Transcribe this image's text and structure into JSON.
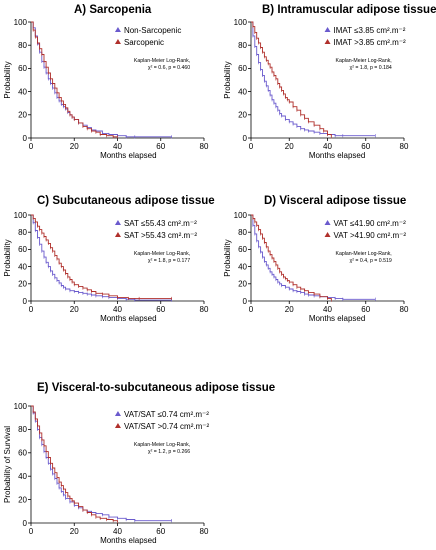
{
  "colors": {
    "series1": "#6a5acd",
    "series2": "#b0302c",
    "axis": "#000000"
  },
  "chart_data": [
    {
      "type": "line",
      "title": "A) Sarcopenia",
      "xlabel": "Months elapsed",
      "ylabel": "Probability",
      "xlim": [
        0,
        80
      ],
      "ylim": [
        0,
        100
      ],
      "xticks": [
        "0",
        "20",
        "40",
        "60",
        "80"
      ],
      "yticks": [
        "0",
        "20",
        "40",
        "60",
        "80",
        "100"
      ],
      "legend_position": "top-right",
      "annotation": [
        "Kaplan-Meier Log-Rank,",
        "χ² = 0.6, p = 0.460"
      ],
      "series": [
        {
          "name": "Non-Sarcopenic",
          "x": [
            0,
            1,
            2,
            3,
            4,
            5,
            6,
            7,
            8,
            9,
            10,
            11,
            12,
            13,
            14,
            15,
            16,
            17,
            18,
            19,
            20,
            22,
            24,
            26,
            28,
            30,
            33,
            36,
            40,
            44,
            48,
            65
          ],
          "y": [
            100,
            95,
            88,
            81,
            74,
            66,
            61,
            56,
            51,
            47,
            43,
            39,
            35,
            32,
            29,
            27,
            25,
            22,
            20,
            18,
            16,
            13,
            11,
            9,
            7,
            6,
            4,
            3,
            2,
            1,
            1,
            1
          ]
        },
        {
          "name": "Sarcopenic",
          "x": [
            0,
            1,
            2,
            3,
            4,
            5,
            6,
            7,
            8,
            9,
            10,
            11,
            12,
            13,
            14,
            15,
            16,
            17,
            18,
            19,
            20,
            22,
            24,
            26,
            28,
            30,
            32,
            35,
            38,
            40
          ],
          "y": [
            100,
            93,
            87,
            82,
            77,
            72,
            66,
            61,
            56,
            51,
            47,
            43,
            39,
            35,
            32,
            29,
            26,
            23,
            20,
            18,
            16,
            13,
            10,
            8,
            6,
            5,
            3,
            2,
            1,
            1
          ]
        }
      ]
    },
    {
      "type": "line",
      "title": "B) Intramuscular adipose tissue",
      "xlabel": "Months elapsed",
      "ylabel": "Probability",
      "xlim": [
        0,
        80
      ],
      "ylim": [
        0,
        100
      ],
      "xticks": [
        "0",
        "20",
        "40",
        "60",
        "80"
      ],
      "yticks": [
        "0",
        "20",
        "40",
        "60",
        "80",
        "100"
      ],
      "legend_position": "top-right",
      "annotation": [
        "Kaplan-Meier Log-Rank,",
        "χ² = 1.8, p = 0.184"
      ],
      "series": [
        {
          "name": "IMAT ≤3.85 cm².m⁻²",
          "x": [
            0,
            1,
            2,
            3,
            4,
            5,
            6,
            7,
            8,
            9,
            10,
            11,
            12,
            13,
            14,
            15,
            16,
            18,
            20,
            22,
            24,
            26,
            28,
            30,
            33,
            36,
            40,
            44,
            48,
            65
          ],
          "y": [
            100,
            88,
            79,
            72,
            65,
            59,
            54,
            49,
            45,
            41,
            37,
            33,
            30,
            27,
            24,
            21,
            19,
            16,
            14,
            12,
            10,
            8,
            7,
            6,
            5,
            4,
            3,
            2,
            2,
            2
          ]
        },
        {
          "name": "IMAT >3.85 cm².m⁻²",
          "x": [
            0,
            1,
            2,
            3,
            4,
            5,
            6,
            7,
            8,
            9,
            10,
            11,
            12,
            13,
            14,
            15,
            16,
            17,
            18,
            19,
            20,
            22,
            24,
            26,
            28,
            30,
            33,
            36,
            38,
            40,
            42
          ],
          "y": [
            100,
            96,
            91,
            86,
            82,
            78,
            74,
            70,
            67,
            64,
            61,
            57,
            54,
            51,
            47,
            44,
            41,
            38,
            35,
            33,
            31,
            27,
            24,
            20,
            17,
            14,
            11,
            8,
            6,
            3,
            1
          ]
        }
      ]
    },
    {
      "type": "line",
      "title": "C) Subcutaneous adipose tissue",
      "xlabel": "Months elapsed",
      "ylabel": "Probability",
      "xlim": [
        0,
        80
      ],
      "ylim": [
        0,
        100
      ],
      "xticks": [
        "0",
        "20",
        "40",
        "60",
        "80"
      ],
      "yticks": [
        "0",
        "20",
        "40",
        "60",
        "80",
        "100"
      ],
      "legend_position": "top-right",
      "annotation": [
        "Kaplan-Meier Log-Rank,",
        "χ² = 1.8, p = 0.177"
      ],
      "series": [
        {
          "name": "SAT ≤55.43 cm².m⁻²",
          "x": [
            0,
            1,
            2,
            3,
            4,
            5,
            6,
            7,
            8,
            9,
            10,
            11,
            12,
            13,
            14,
            15,
            16,
            18,
            20,
            22,
            24,
            26,
            28,
            30,
            33,
            36,
            40,
            44,
            48,
            65
          ],
          "y": [
            100,
            91,
            82,
            74,
            66,
            58,
            51,
            45,
            40,
            35,
            31,
            27,
            24,
            21,
            18,
            16,
            14,
            12,
            11,
            10,
            9,
            8,
            7,
            6,
            5,
            4,
            3,
            2,
            1,
            1
          ]
        },
        {
          "name": "SAT >55.43 cm².m⁻²",
          "x": [
            0,
            1,
            2,
            3,
            4,
            5,
            6,
            7,
            8,
            9,
            10,
            11,
            12,
            13,
            14,
            15,
            16,
            17,
            18,
            19,
            20,
            22,
            24,
            26,
            28,
            30,
            33,
            36,
            40,
            45,
            50,
            65
          ],
          "y": [
            100,
            96,
            92,
            87,
            83,
            79,
            75,
            71,
            67,
            62,
            58,
            53,
            49,
            44,
            40,
            36,
            32,
            28,
            25,
            22,
            19,
            17,
            15,
            13,
            11,
            9,
            8,
            6,
            4,
            3,
            3,
            3
          ]
        }
      ]
    },
    {
      "type": "line",
      "title": "D) Visceral adipose tissue",
      "xlabel": "Months elapsed",
      "ylabel": "Probability",
      "xlim": [
        0,
        80
      ],
      "ylim": [
        0,
        100
      ],
      "xticks": [
        "0",
        "20",
        "40",
        "60",
        "80"
      ],
      "yticks": [
        "0",
        "20",
        "40",
        "60",
        "80",
        "100"
      ],
      "legend_position": "top-right",
      "annotation": [
        "Kaplan-Meier Log-Rank,",
        "χ² = 0.4, p = 0.519"
      ],
      "series": [
        {
          "name": "VAT ≤41.90 cm².m⁻²",
          "x": [
            0,
            1,
            2,
            3,
            4,
            5,
            6,
            7,
            8,
            9,
            10,
            11,
            12,
            13,
            14,
            15,
            16,
            18,
            20,
            22,
            24,
            26,
            28,
            30,
            33,
            36,
            40,
            44,
            48,
            65
          ],
          "y": [
            100,
            88,
            78,
            70,
            63,
            57,
            51,
            46,
            42,
            38,
            34,
            31,
            28,
            25,
            22,
            20,
            18,
            16,
            14,
            12,
            11,
            10,
            8,
            7,
            6,
            5,
            4,
            3,
            2,
            2
          ]
        },
        {
          "name": "VAT >41.90 cm².m⁻²",
          "x": [
            0,
            1,
            2,
            3,
            4,
            5,
            6,
            7,
            8,
            9,
            10,
            11,
            12,
            13,
            14,
            15,
            16,
            17,
            18,
            19,
            20,
            22,
            24,
            26,
            28,
            30,
            33,
            36,
            40,
            42
          ],
          "y": [
            100,
            96,
            92,
            88,
            83,
            78,
            73,
            68,
            63,
            58,
            54,
            50,
            46,
            42,
            38,
            34,
            31,
            28,
            26,
            24,
            22,
            19,
            16,
            14,
            12,
            10,
            8,
            5,
            3,
            1
          ]
        }
      ]
    },
    {
      "type": "line",
      "title": "E) Visceral-to-subcutaneous adipose tissue",
      "xlabel": "Months elapsed",
      "ylabel": "Probability of Survival",
      "xlim": [
        0,
        80
      ],
      "ylim": [
        0,
        100
      ],
      "xticks": [
        "0",
        "20",
        "40",
        "60",
        "80"
      ],
      "yticks": [
        "0",
        "20",
        "40",
        "60",
        "80",
        "100"
      ],
      "legend_position": "top-right",
      "annotation": [
        "Kaplan-Meier Log-Rank,",
        "χ² = 1.2, p = 0.266"
      ],
      "series": [
        {
          "name": "VAT/SAT ≤0.74 cm².m⁻²",
          "x": [
            0,
            1,
            2,
            3,
            4,
            5,
            6,
            7,
            8,
            9,
            10,
            11,
            12,
            13,
            14,
            15,
            16,
            18,
            20,
            22,
            24,
            26,
            28,
            30,
            33,
            36,
            40,
            44,
            48,
            65
          ],
          "y": [
            100,
            94,
            87,
            80,
            73,
            67,
            61,
            56,
            51,
            46,
            42,
            38,
            34,
            30,
            27,
            24,
            21,
            18,
            15,
            13,
            11,
            10,
            9,
            8,
            7,
            5,
            4,
            3,
            2,
            2
          ]
        },
        {
          "name": "VAT/SAT >0.74 cm².m⁻²",
          "x": [
            0,
            1,
            2,
            3,
            4,
            5,
            6,
            7,
            8,
            9,
            10,
            11,
            12,
            13,
            14,
            15,
            16,
            17,
            18,
            19,
            20,
            22,
            24,
            26,
            28,
            30,
            32,
            35,
            38,
            40
          ],
          "y": [
            100,
            95,
            89,
            83,
            77,
            71,
            66,
            61,
            56,
            51,
            47,
            43,
            39,
            35,
            32,
            29,
            26,
            23,
            21,
            19,
            17,
            14,
            11,
            9,
            7,
            5,
            4,
            3,
            2,
            1
          ]
        }
      ]
    }
  ]
}
